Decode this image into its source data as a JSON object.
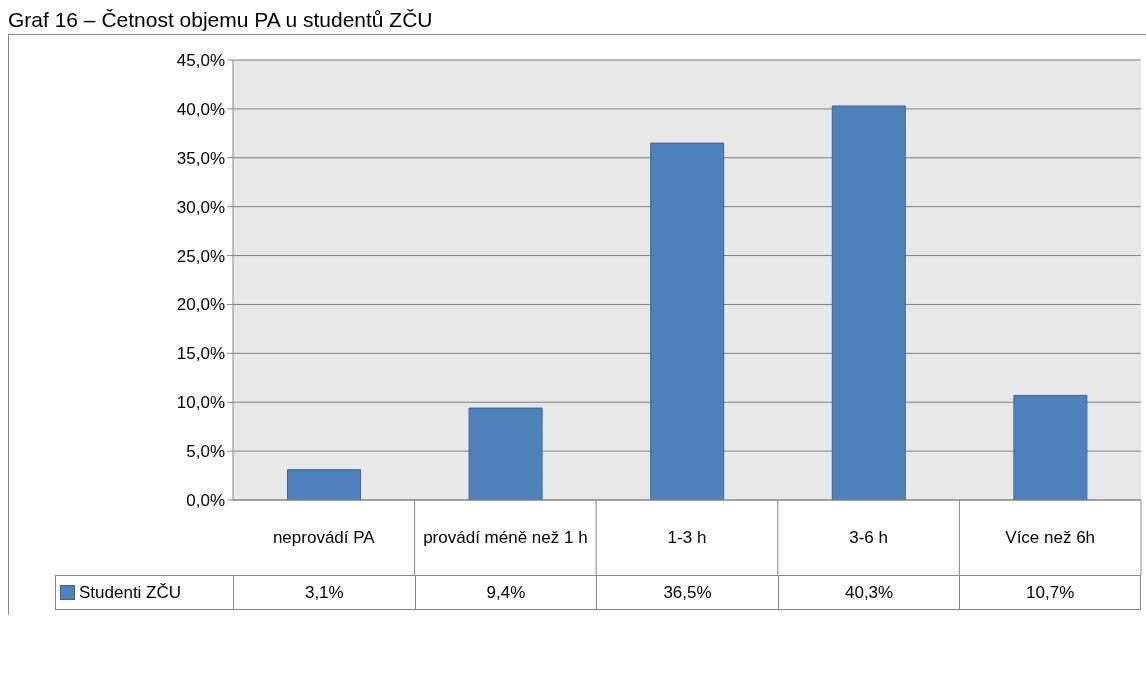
{
  "chart_data": {
    "type": "bar",
    "title": "Graf 16 – Četnost objemu PA u studentů ZČU",
    "categories": [
      "neprovádí PA",
      "provádí méně než 1 h",
      "1-3 h",
      "3-6 h",
      "Více než 6h"
    ],
    "series": [
      {
        "name": "Studenti ZČU",
        "color": "#4f81bd",
        "values": [
          3.1,
          9.4,
          36.5,
          40.3,
          10.7
        ]
      }
    ],
    "value_labels": [
      "3,1%",
      "9,4%",
      "36,5%",
      "40,3%",
      "10,7%"
    ],
    "ylim": [
      0,
      45
    ],
    "yticks": [
      {
        "value": 0,
        "label": "0,0%"
      },
      {
        "value": 5,
        "label": "5,0%"
      },
      {
        "value": 10,
        "label": "10,0%"
      },
      {
        "value": 15,
        "label": "15,0%"
      },
      {
        "value": 20,
        "label": "20,0%"
      },
      {
        "value": 25,
        "label": "25,0%"
      },
      {
        "value": 30,
        "label": "30,0%"
      },
      {
        "value": 35,
        "label": "35,0%"
      },
      {
        "value": 40,
        "label": "40,0%"
      },
      {
        "value": 45,
        "label": "45,0%"
      }
    ],
    "grid": "y",
    "legend": "bottom left"
  }
}
